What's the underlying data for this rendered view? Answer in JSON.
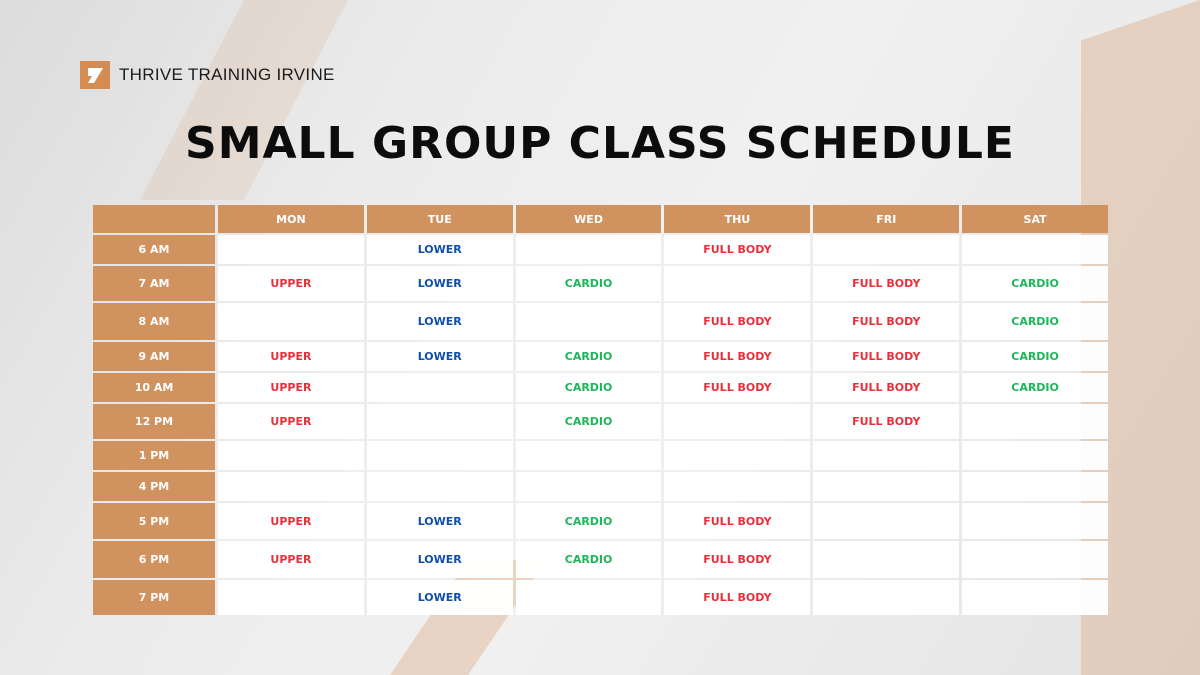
{
  "brand": {
    "name": "THRIVE TRAINING IRVINE",
    "accent": "#d0925f"
  },
  "title": "SMALL GROUP CLASS SCHEDULE",
  "colors": {
    "UPPER": "#e8303b",
    "LOWER": "#0f4fa8",
    "CARDIO": "#1db65a",
    "FULL BODY": "#e8303b"
  },
  "days": [
    "MON",
    "TUE",
    "WED",
    "THU",
    "FRI",
    "SAT"
  ],
  "rows": [
    {
      "time": "6 AM",
      "classes": [
        "",
        "LOWER",
        "",
        "FULL BODY",
        "",
        ""
      ]
    },
    {
      "time": "7 AM",
      "classes": [
        "UPPER",
        "LOWER",
        "CARDIO",
        "",
        "FULL BODY",
        "CARDIO"
      ]
    },
    {
      "time": "8 AM",
      "classes": [
        "",
        "LOWER",
        "",
        "FULL BODY",
        "FULL BODY",
        "CARDIO"
      ]
    },
    {
      "time": "9 AM",
      "classes": [
        "UPPER",
        "LOWER",
        "CARDIO",
        "FULL BODY",
        "FULL BODY",
        "CARDIO"
      ]
    },
    {
      "time": "10 AM",
      "classes": [
        "UPPER",
        "",
        "CARDIO",
        "FULL BODY",
        "FULL BODY",
        "CARDIO"
      ]
    },
    {
      "time": "12 PM",
      "classes": [
        "UPPER",
        "",
        "CARDIO",
        "",
        "FULL BODY",
        ""
      ]
    },
    {
      "time": "1 PM",
      "classes": [
        "",
        "",
        "",
        "",
        "",
        ""
      ]
    },
    {
      "time": "4 PM",
      "classes": [
        "",
        "",
        "",
        "",
        "",
        ""
      ]
    },
    {
      "time": "5 PM",
      "classes": [
        "UPPER",
        "LOWER",
        "CARDIO",
        "FULL BODY",
        "",
        ""
      ]
    },
    {
      "time": "6 PM",
      "classes": [
        "UPPER",
        "LOWER",
        "CARDIO",
        "FULL BODY",
        "",
        ""
      ]
    },
    {
      "time": "7 PM",
      "classes": [
        "",
        "LOWER",
        "",
        "FULL BODY",
        "",
        ""
      ]
    }
  ]
}
